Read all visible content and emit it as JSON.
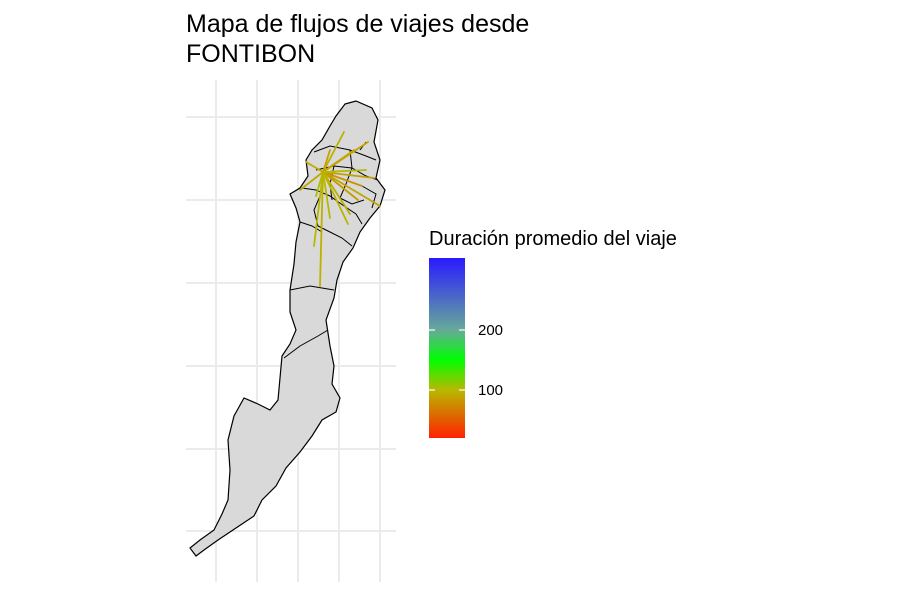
{
  "chart_data": {
    "type": "map-flow",
    "title": [
      "Mapa de flujos de viajes desde",
      "FONTIBON"
    ],
    "legend": {
      "title": "Duración promedio del viaje",
      "placement": "right",
      "ticks": [
        100,
        200
      ],
      "range": [
        20,
        320
      ],
      "gradient_stops": [
        {
          "value": 20,
          "color": "#ff2200"
        },
        {
          "value": 100,
          "color": "#b8b800"
        },
        {
          "value": 150,
          "color": "#00ff00"
        },
        {
          "value": 200,
          "color": "#66aa99"
        },
        {
          "value": 320,
          "color": "#2a1aff"
        }
      ]
    },
    "grid": true,
    "region_fill": "#d9d9d9",
    "region_stroke": "#000000",
    "grid_color": "#ebebeb",
    "origin": "FONTIBON",
    "flows": [
      {
        "to": "n1",
        "value": 95
      },
      {
        "to": "n2",
        "value": 90
      },
      {
        "to": "n3",
        "value": 92
      },
      {
        "to": "n4",
        "value": 88
      },
      {
        "to": "n5",
        "value": 80
      },
      {
        "to": "n6",
        "value": 85
      },
      {
        "to": "n7",
        "value": 90
      },
      {
        "to": "n8",
        "value": 95
      },
      {
        "to": "n9",
        "value": 100
      },
      {
        "to": "n10",
        "value": 98
      },
      {
        "to": "n11",
        "value": 92
      },
      {
        "to": "n12",
        "value": 105
      },
      {
        "to": "n13",
        "value": 100
      },
      {
        "to": "n14",
        "value": 96
      },
      {
        "to": "n15",
        "value": 90
      },
      {
        "to": "n16",
        "value": 94
      },
      {
        "to": "n17",
        "value": 102
      },
      {
        "to": "n18",
        "value": 88
      }
    ]
  }
}
